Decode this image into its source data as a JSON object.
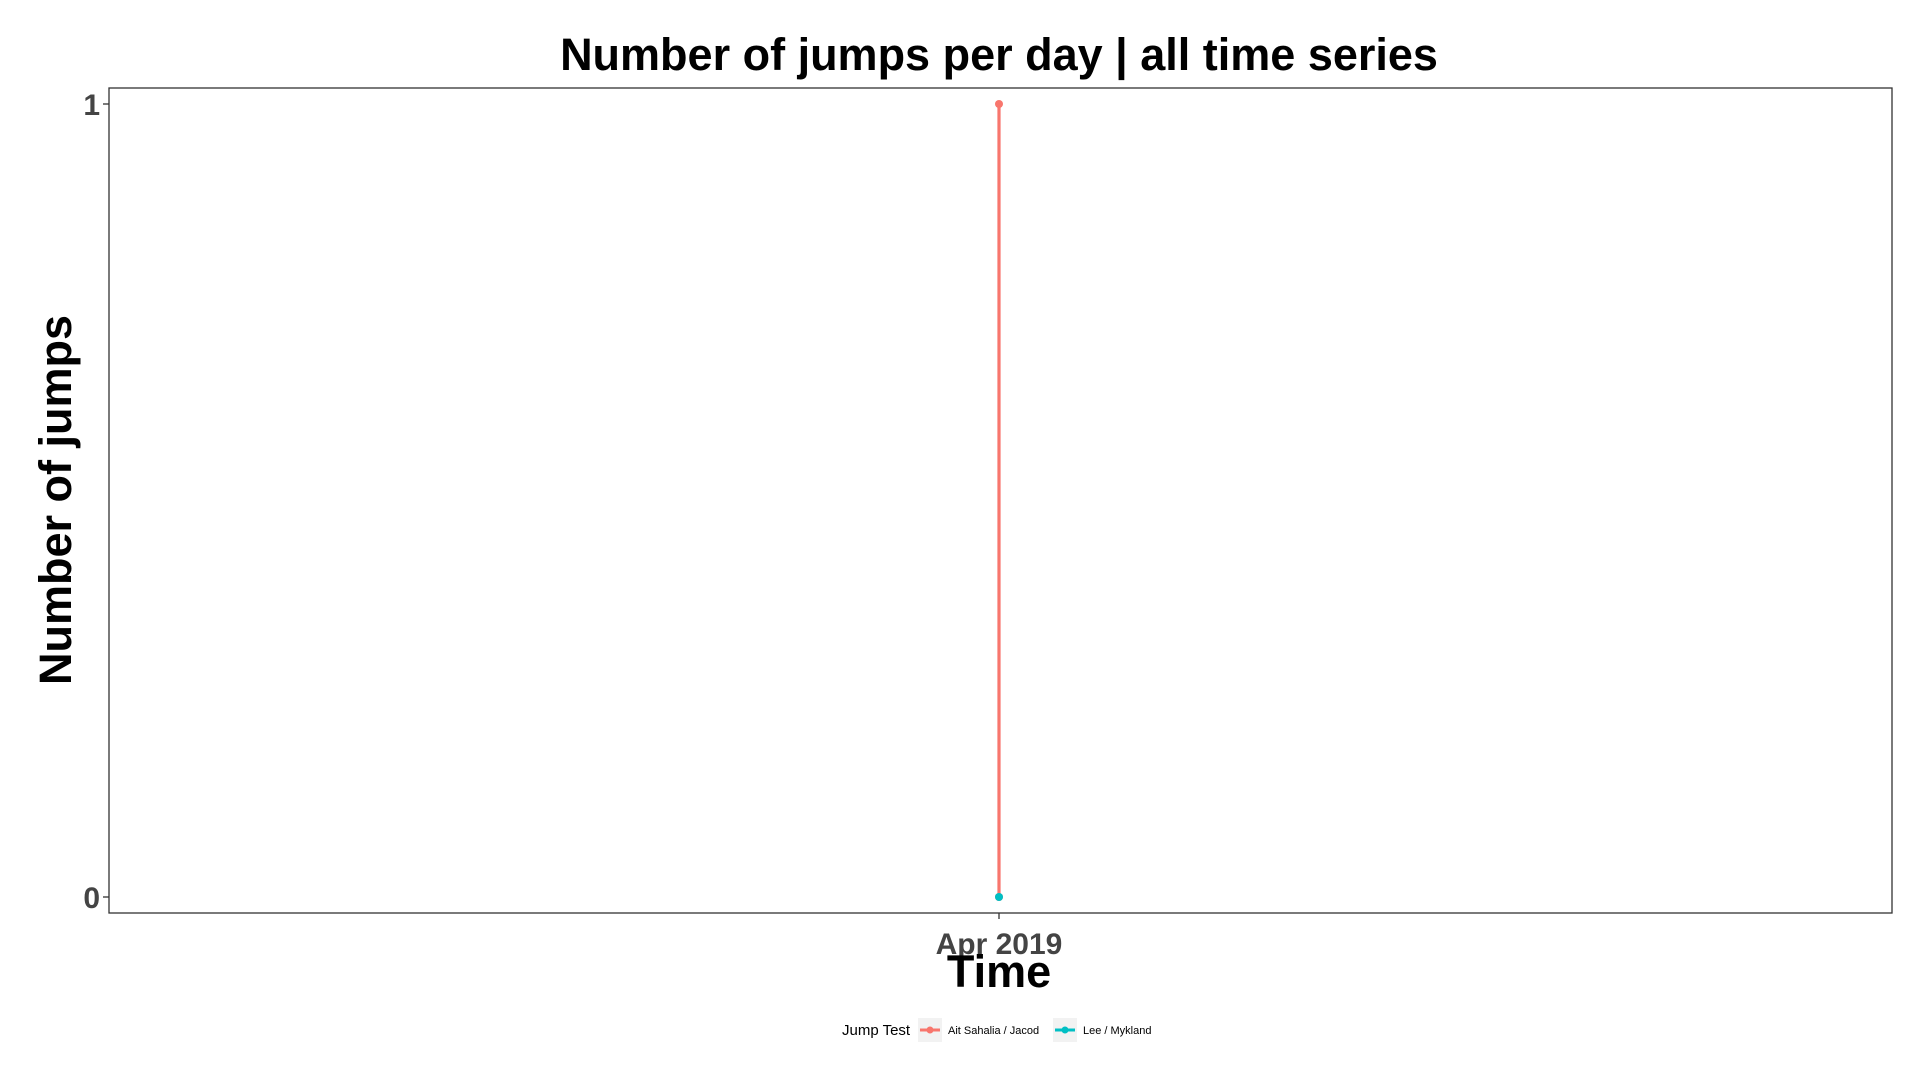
{
  "chart_data": {
    "type": "line",
    "title": "Number of jumps per day | all time series",
    "xlabel": "Time",
    "ylabel": "Number of jumps",
    "x_tick_labels": [
      "Apr 2019"
    ],
    "y_ticks": [
      0,
      1
    ],
    "ylim": [
      0,
      1
    ],
    "grid": false,
    "legend": {
      "title": "Jump Test",
      "position": "bottom"
    },
    "series": [
      {
        "name": "Ait Sahalia / Jacod",
        "color": "#F8766D",
        "points": [
          {
            "x": "Apr 2019",
            "y": 0
          },
          {
            "x": "Apr 2019",
            "y": 1
          }
        ]
      },
      {
        "name": "Lee / Mykland",
        "color": "#00BFC4",
        "points": [
          {
            "x": "Apr 2019",
            "y": 0
          }
        ]
      }
    ]
  }
}
